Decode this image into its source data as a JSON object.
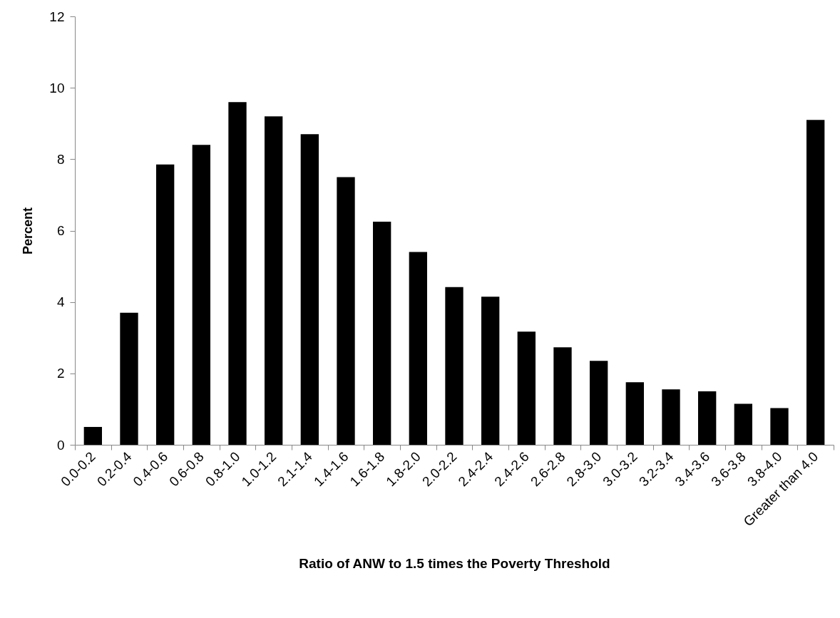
{
  "chart_data": {
    "type": "bar",
    "xlabel": "Ratio of ANW to 1.5 times the Poverty Threshold",
    "ylabel": "Percent",
    "categories": [
      "0.0-0.2",
      "0.2-0.4",
      "0.4-0.6",
      "0.6-0.8",
      "0.8-1.0",
      "1.0-1.2",
      "2.1-1.4",
      "1.4-1.6",
      "1.6-1.8",
      "1.8-2.0",
      "2.0-2.2",
      "2.4-2.4",
      "2.4-2.6",
      "2.6-2.8",
      "2.8-3.0",
      "3.0-3.2",
      "3.2-3.4",
      "3.4-3.6",
      "3.6-3.8",
      "3.8-4.0",
      "Greater than 4.0"
    ],
    "values": [
      0.5,
      3.7,
      7.85,
      8.4,
      9.6,
      9.2,
      8.7,
      7.5,
      6.25,
      5.4,
      4.42,
      4.15,
      3.17,
      2.73,
      2.35,
      1.75,
      1.55,
      1.5,
      1.15,
      1.03,
      9.1
    ],
    "color": "#000000",
    "ylim": [
      0,
      12
    ],
    "yticks": [
      0,
      2,
      4,
      6,
      8,
      10,
      12
    ],
    "grid": false
  }
}
